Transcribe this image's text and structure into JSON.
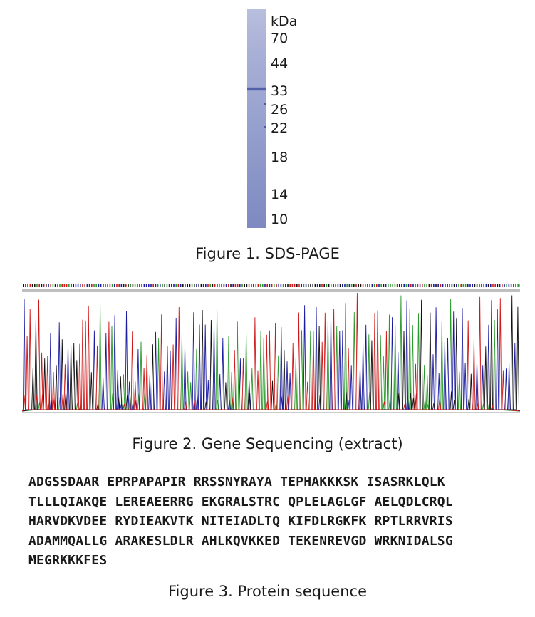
{
  "figure1": {
    "unit_label": "kDa",
    "markers": [
      "70",
      "44",
      "33",
      "26",
      "22",
      "18",
      "14",
      "10"
    ],
    "caption": "Figure 1. SDS-PAGE"
  },
  "figure2": {
    "caption": "Figure 2. Gene Sequencing (extract)",
    "trace_colors": {
      "A": "#2a9a2a",
      "C": "#1c1ca0",
      "G": "#111111",
      "T": "#d01818"
    }
  },
  "figure3": {
    "caption": "Figure 3. Protein sequence",
    "lines": [
      [
        "ADGSSDAAR",
        "EPRPAPAPIR",
        "RRSSNYRAYA",
        "TEPHAKKKSK",
        "ISASRKLQLK"
      ],
      [
        "TLLLQIAKQE",
        "LEREAEERRG",
        "EKGRALSTRC",
        "QPLELAGLGF",
        "AELQDLCRQL"
      ],
      [
        "HARVDKVDEE",
        "RYDIEAKVTK",
        "NITEIADLTQ",
        "KIFDLRGKFK",
        "RPTLRRVRIS"
      ],
      [
        "ADAMMQALLG",
        "ARAKESLDLR",
        "AHLKQVKKED",
        "TEKENREVGD",
        "WRKNIDALSG"
      ],
      [
        "MEGRKKKFES"
      ]
    ]
  }
}
